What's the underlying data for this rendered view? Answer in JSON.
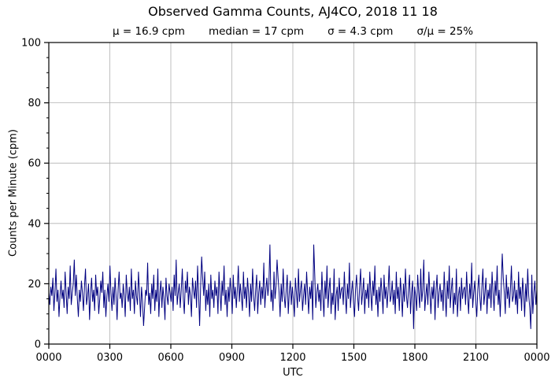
{
  "chart_data": {
    "type": "line",
    "title": "Observed Gamma Counts, AJ4CO, 2018 11 18",
    "stats_display": [
      "μ = 16.9 cpm",
      "median = 17 cpm",
      "σ = 4.3 cpm",
      "σ/μ = 25%"
    ],
    "stats": {
      "mean_cpm": 16.9,
      "median_cpm": 17,
      "sigma_cpm": 4.3,
      "sigma_over_mean_pct": 25
    },
    "xlabel": "UTC",
    "ylabel": "Counts per Minute (cpm)",
    "x_tick_labels": [
      "0000",
      "0300",
      "0600",
      "0900",
      "1200",
      "1500",
      "1800",
      "2100",
      "0000"
    ],
    "x_range_hours": 24,
    "y_ticks": [
      0,
      20,
      40,
      60,
      80,
      100
    ],
    "y_minor_step": 5,
    "ylim": [
      0,
      100
    ],
    "grid": true,
    "grid_color": "#b0b0b0",
    "axis_color": "#000000",
    "background_color": "#ffffff",
    "legend": "none",
    "minutes_per_point": 3,
    "series": [
      {
        "name": "gamma-counts",
        "color": "#000080",
        "values": [
          17,
          13,
          19,
          16,
          22,
          11,
          17,
          25,
          14,
          18,
          9,
          16,
          21,
          15,
          18,
          12,
          24,
          17,
          10,
          19,
          15,
          26,
          13,
          17,
          20,
          28,
          16,
          23,
          15,
          9,
          18,
          14,
          21,
          17,
          11,
          19,
          25,
          13,
          16,
          20,
          8,
          17,
          22,
          14,
          18,
          11,
          23,
          16,
          19,
          10,
          15,
          21,
          17,
          24,
          12,
          18,
          9,
          16,
          20,
          14,
          26,
          17,
          11,
          19,
          13,
          22,
          16,
          8,
          18,
          24,
          15,
          17,
          12,
          20,
          16,
          9,
          23,
          17,
          14,
          19,
          11,
          25,
          15,
          18,
          10,
          21,
          16,
          13,
          24,
          17,
          9,
          19,
          14,
          6,
          12,
          18,
          16,
          27,
          13,
          17,
          10,
          20,
          15,
          23,
          11,
          18,
          14,
          25,
          9,
          17,
          21,
          12,
          19,
          15,
          8,
          22,
          16,
          13,
          20,
          17,
          14,
          19,
          11,
          23,
          16,
          28,
          13,
          17,
          20,
          12,
          18,
          25,
          15,
          10,
          21,
          17,
          24,
          13,
          19,
          16,
          9,
          22,
          18,
          15,
          21,
          12,
          26,
          17,
          6,
          19,
          29,
          22,
          16,
          24,
          11,
          18,
          13,
          20,
          9,
          23,
          15,
          18,
          12,
          21,
          16,
          19,
          10,
          24,
          17,
          11,
          21,
          16,
          26,
          13,
          18,
          9,
          19,
          14,
          22,
          17,
          10,
          23,
          15,
          19,
          12,
          18,
          26,
          14,
          20,
          16,
          11,
          24,
          15,
          19,
          12,
          22,
          17,
          9,
          20,
          14,
          25,
          16,
          11,
          18,
          23,
          10,
          17,
          21,
          13,
          19,
          15,
          27,
          12,
          18,
          22,
          16,
          20,
          33,
          14,
          18,
          11,
          24,
          15,
          19,
          28,
          22,
          17,
          9,
          20,
          14,
          25,
          16,
          12,
          18,
          23,
          10,
          17,
          21,
          13,
          19,
          15,
          9,
          22,
          17,
          12,
          25,
          14,
          18,
          21,
          11,
          16,
          20,
          13,
          24,
          17,
          10,
          19,
          15,
          21,
          8,
          33,
          23,
          12,
          17,
          20,
          14,
          18,
          11,
          24,
          16,
          9,
          21,
          15,
          26,
          12,
          18,
          22,
          10,
          17,
          13,
          25,
          8,
          16,
          19,
          11,
          22,
          15,
          18,
          19,
          13,
          24,
          16,
          10,
          20,
          15,
          27,
          12,
          17,
          21,
          14,
          9,
          18,
          23,
          16,
          11,
          19,
          25,
          13,
          17,
          22,
          10,
          18,
          15,
          20,
          12,
          24,
          17,
          11,
          21,
          16,
          26,
          13,
          18,
          9,
          19,
          14,
          22,
          17,
          10,
          23,
          15,
          19,
          12,
          18,
          26,
          14,
          16,
          21,
          13,
          18,
          10,
          24,
          15,
          19,
          11,
          22,
          17,
          9,
          20,
          14,
          25,
          16,
          12,
          18,
          23,
          10,
          17,
          21,
          5,
          19,
          16,
          11,
          23,
          17,
          12,
          25,
          14,
          18,
          28,
          11,
          16,
          20,
          13,
          24,
          17,
          10,
          19,
          15,
          21,
          8,
          18,
          23,
          12,
          17,
          20,
          14,
          18,
          11,
          24,
          16,
          9,
          21,
          15,
          26,
          12,
          18,
          22,
          10,
          17,
          13,
          25,
          9,
          16,
          19,
          11,
          22,
          15,
          18,
          19,
          13,
          24,
          16,
          10,
          20,
          15,
          27,
          12,
          17,
          21,
          14,
          9,
          18,
          23,
          16,
          11,
          19,
          25,
          13,
          17,
          22,
          10,
          18,
          15,
          20,
          12,
          24,
          17,
          11,
          21,
          16,
          26,
          13,
          18,
          9,
          19,
          30,
          22,
          17,
          10,
          23,
          15,
          19,
          12,
          18,
          26,
          14,
          16,
          21,
          13,
          18,
          10,
          24,
          15,
          19,
          11,
          22,
          17,
          9,
          20,
          14,
          25,
          16,
          12,
          5,
          23,
          10,
          17,
          21,
          13,
          18
        ]
      }
    ]
  }
}
